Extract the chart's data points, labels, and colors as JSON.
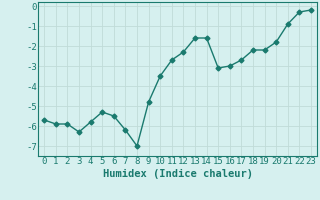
{
  "x": [
    0,
    1,
    2,
    3,
    4,
    5,
    6,
    7,
    8,
    9,
    10,
    11,
    12,
    13,
    14,
    15,
    16,
    17,
    18,
    19,
    20,
    21,
    22,
    23
  ],
  "y": [
    -5.7,
    -5.9,
    -5.9,
    -6.3,
    -5.8,
    -5.3,
    -5.5,
    -6.2,
    -7.0,
    -4.8,
    -3.5,
    -2.7,
    -2.3,
    -1.6,
    -1.6,
    -3.1,
    -3.0,
    -2.7,
    -2.2,
    -2.2,
    -1.8,
    -0.9,
    -0.3,
    -0.2
  ],
  "line_color": "#1a7a6e",
  "marker": "D",
  "marker_size": 2.5,
  "bg_color": "#d6f0ef",
  "grid_color": "#c0dbd8",
  "xlabel": "Humidex (Indice chaleur)",
  "ylim": [
    -7.5,
    0.2
  ],
  "xlim": [
    -0.5,
    23.5
  ],
  "yticks": [
    0,
    -1,
    -2,
    -3,
    -4,
    -5,
    -6,
    -7
  ],
  "xticks": [
    0,
    1,
    2,
    3,
    4,
    5,
    6,
    7,
    8,
    9,
    10,
    11,
    12,
    13,
    14,
    15,
    16,
    17,
    18,
    19,
    20,
    21,
    22,
    23
  ],
  "tick_label_fontsize": 6.5,
  "xlabel_fontsize": 7.5,
  "line_width": 1.0
}
